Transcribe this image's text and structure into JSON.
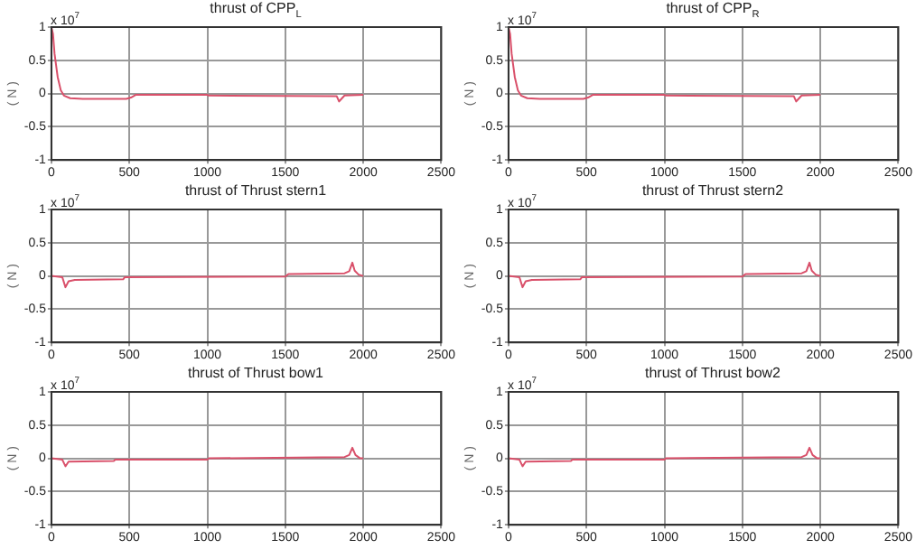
{
  "chart_data": [
    {
      "type": "line",
      "title": "thrust of CPP$_{L}$",
      "ylabel": "( N )",
      "annotations": [
        "x 10$^{7}$"
      ],
      "xlim": [
        0,
        2500
      ],
      "xticks": [
        0,
        500,
        1000,
        1500,
        2000,
        2500
      ],
      "ylim": [
        -1,
        1
      ],
      "yticks": [
        -1,
        -0.5,
        0,
        0.5,
        1
      ],
      "grid": true,
      "marker": "none",
      "series": [
        {
          "color": "#d9506a",
          "x": [
            0,
            10,
            20,
            40,
            60,
            80,
            120,
            200,
            480,
            510,
            540,
            1000,
            1010,
            1830,
            1845,
            1860,
            1880,
            2000
          ],
          "values": [
            1,
            0.9,
            0.6,
            0.25,
            0.05,
            -0.03,
            -0.07,
            -0.08,
            -0.08,
            -0.06,
            -0.02,
            -0.02,
            -0.03,
            -0.04,
            -0.12,
            -0.08,
            -0.03,
            -0.02
          ]
        }
      ]
    },
    {
      "type": "line",
      "title": "thrust of CPP$_{R}$",
      "ylabel": "( N )",
      "annotations": [
        "x 10$^{7}$"
      ],
      "xlim": [
        0,
        2500
      ],
      "xticks": [
        0,
        500,
        1000,
        1500,
        2000,
        2500
      ],
      "ylim": [
        -1,
        1
      ],
      "yticks": [
        -1,
        -0.5,
        0,
        0.5,
        1
      ],
      "grid": true,
      "marker": "none",
      "series": [
        {
          "color": "#d9506a",
          "x": [
            0,
            10,
            20,
            40,
            60,
            80,
            120,
            200,
            480,
            510,
            540,
            1000,
            1010,
            1830,
            1845,
            1860,
            1880,
            2000
          ],
          "values": [
            1,
            0.9,
            0.6,
            0.25,
            0.05,
            -0.03,
            -0.07,
            -0.08,
            -0.08,
            -0.06,
            -0.02,
            -0.02,
            -0.03,
            -0.04,
            -0.12,
            -0.08,
            -0.03,
            -0.02
          ]
        }
      ]
    },
    {
      "type": "line",
      "title": "thrust of Thrust stern1",
      "ylabel": "( N )",
      "annotations": [
        "x 10$^{7}$"
      ],
      "xlim": [
        0,
        2500
      ],
      "xticks": [
        0,
        500,
        1000,
        1500,
        2000,
        2500
      ],
      "ylim": [
        -1,
        1
      ],
      "yticks": [
        -1,
        -0.5,
        0,
        0.5,
        1
      ],
      "grid": true,
      "marker": "none",
      "series": [
        {
          "color": "#d9506a",
          "x": [
            0,
            70,
            90,
            110,
            150,
            460,
            470,
            1500,
            1520,
            1880,
            1910,
            1930,
            1945,
            1970,
            2000
          ],
          "values": [
            0,
            -0.02,
            -0.17,
            -0.08,
            -0.06,
            -0.05,
            -0.02,
            -0.01,
            0.03,
            0.04,
            0.07,
            0.2,
            0.08,
            0.02,
            0
          ]
        }
      ]
    },
    {
      "type": "line",
      "title": "thrust of Thrust stern2",
      "ylabel": "( N )",
      "annotations": [
        "x 10$^{7}$"
      ],
      "xlim": [
        0,
        2500
      ],
      "xticks": [
        0,
        500,
        1000,
        1500,
        2000,
        2500
      ],
      "ylim": [
        -1,
        1
      ],
      "yticks": [
        -1,
        -0.5,
        0,
        0.5,
        1
      ],
      "grid": true,
      "marker": "none",
      "series": [
        {
          "color": "#d9506a",
          "x": [
            0,
            70,
            90,
            110,
            150,
            460,
            470,
            1500,
            1520,
            1880,
            1910,
            1930,
            1945,
            1970,
            2000
          ],
          "values": [
            0,
            -0.02,
            -0.17,
            -0.08,
            -0.06,
            -0.05,
            -0.02,
            -0.01,
            0.03,
            0.04,
            0.07,
            0.2,
            0.08,
            0.02,
            0
          ]
        }
      ]
    },
    {
      "type": "line",
      "title": "thrust of Thrust bow1",
      "ylabel": "( N )",
      "annotations": [
        "x 10$^{7}$"
      ],
      "xlim": [
        0,
        2500
      ],
      "xticks": [
        0,
        500,
        1000,
        1500,
        2000,
        2500
      ],
      "ylim": [
        -1,
        1
      ],
      "yticks": [
        -1,
        -0.5,
        0,
        0.5,
        1
      ],
      "grid": true,
      "marker": "none",
      "series": [
        {
          "color": "#d9506a",
          "x": [
            0,
            70,
            90,
            110,
            400,
            410,
            1000,
            1010,
            1880,
            1910,
            1930,
            1950,
            1980,
            2000
          ],
          "values": [
            0,
            -0.02,
            -0.12,
            -0.05,
            -0.04,
            -0.02,
            -0.02,
            0,
            0.02,
            0.05,
            0.16,
            0.05,
            0,
            0
          ]
        }
      ]
    },
    {
      "type": "line",
      "title": "thrust of Thrust bow2",
      "ylabel": "( N )",
      "annotations": [
        "x 10$^{7}$"
      ],
      "xlim": [
        0,
        2500
      ],
      "xticks": [
        0,
        500,
        1000,
        1500,
        2000,
        2500
      ],
      "ylim": [
        -1,
        1
      ],
      "yticks": [
        -1,
        -0.5,
        0,
        0.5,
        1
      ],
      "grid": true,
      "marker": "none",
      "series": [
        {
          "color": "#d9506a",
          "x": [
            0,
            70,
            90,
            110,
            400,
            410,
            1000,
            1010,
            1880,
            1910,
            1930,
            1950,
            1980,
            2000
          ],
          "values": [
            0,
            -0.02,
            -0.12,
            -0.05,
            -0.04,
            -0.02,
            -0.02,
            0,
            0.02,
            0.05,
            0.16,
            0.05,
            0,
            0
          ]
        }
      ]
    }
  ]
}
